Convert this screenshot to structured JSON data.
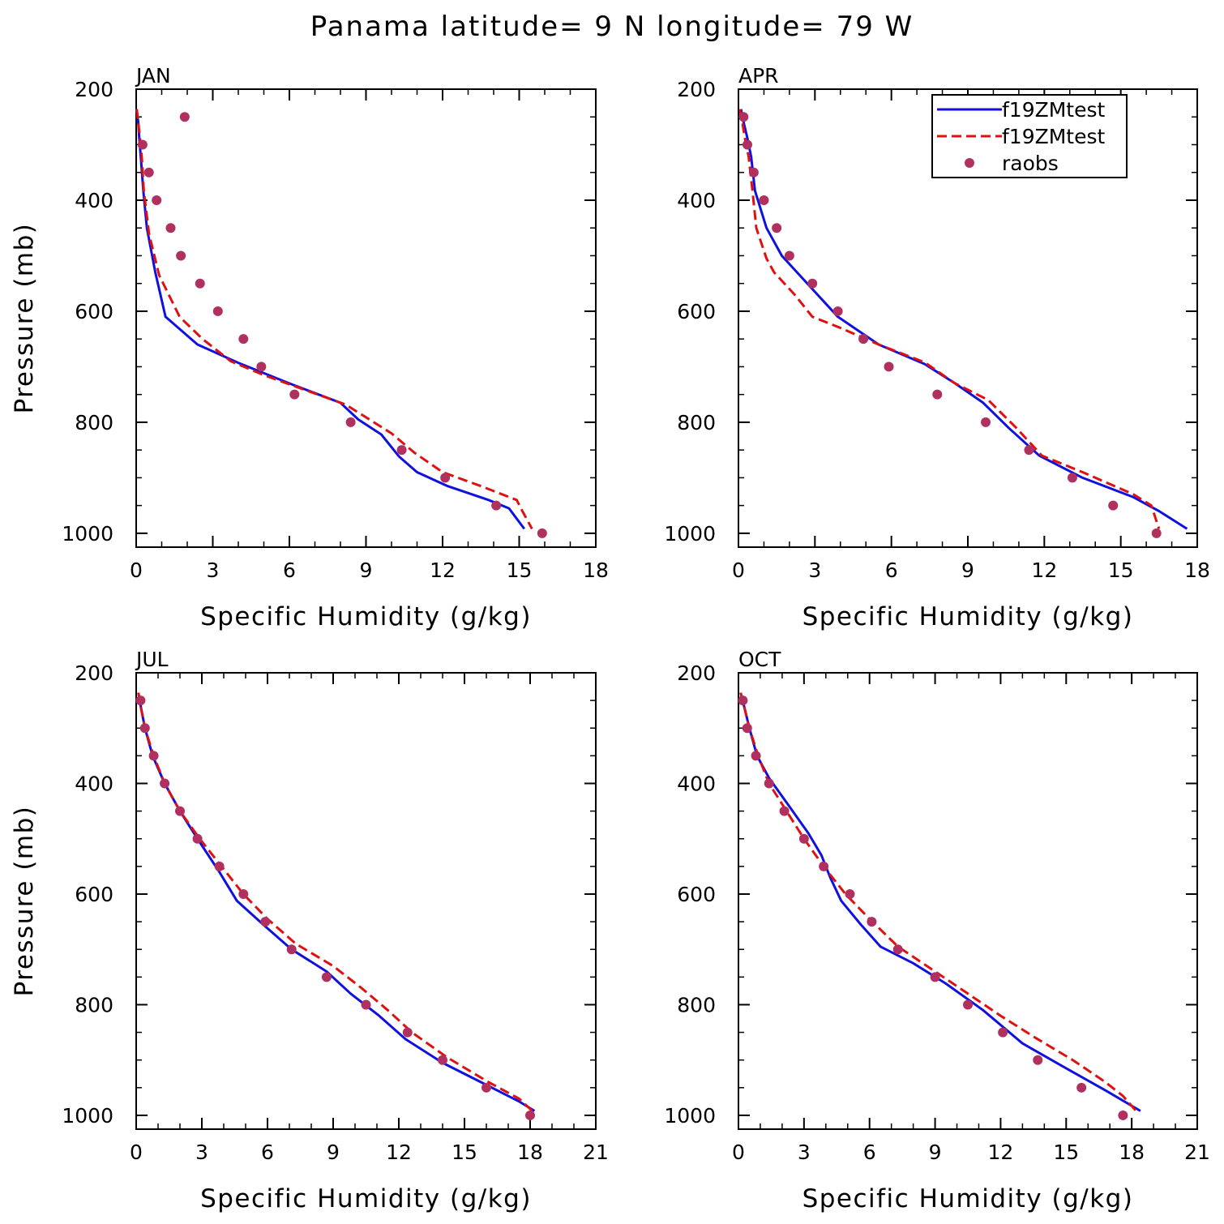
{
  "figure": {
    "title": "Panama  latitude= 9 N longitude= 79 W"
  },
  "legend": {
    "entries": [
      {
        "label": "f19ZMtest",
        "style": "solid",
        "color": "#1010e0"
      },
      {
        "label": "f19ZMtest",
        "style": "dashed",
        "color": "#e01010"
      },
      {
        "label": "raobs",
        "style": "marker",
        "color": "#b03060"
      }
    ],
    "placement": "top-right of APR panel"
  },
  "chart_data": [
    {
      "type": "line",
      "panel": "JAN",
      "xlabel": "Specific Humidity (g/kg)",
      "ylabel": "Pressure (mb)",
      "xlim": [
        0,
        18
      ],
      "xticks": [
        "0",
        "3",
        "6",
        "9",
        "12",
        "15",
        "18"
      ],
      "ylim": [
        1025,
        200
      ],
      "yticks": [
        "200",
        "400",
        "600",
        "800",
        "1000"
      ],
      "grid": false,
      "series": [
        {
          "name": "f19ZMtest",
          "style": "solid",
          "color": "#1010e0",
          "x": [
            0.02,
            0.08,
            0.12,
            0.18,
            0.28,
            0.42,
            0.75,
            1.15,
            2.4,
            4.0,
            6.0,
            8.0,
            8.7,
            9.6,
            10.3,
            11.0,
            12.2,
            13.8,
            14.6,
            15.2
          ],
          "y": [
            236,
            259,
            288,
            322,
            383,
            450,
            530,
            610,
            660,
            693,
            730,
            765,
            795,
            822,
            862,
            890,
            915,
            940,
            955,
            992
          ]
        },
        {
          "name": "f19ZMtest",
          "style": "dashed",
          "color": "#e01010",
          "x": [
            0.02,
            0.08,
            0.15,
            0.22,
            0.3,
            0.5,
            0.9,
            1.7,
            2.6,
            3.7,
            5.0,
            6.5,
            8.2,
            10.0,
            10.9,
            12.0,
            13.5,
            14.9,
            15.1,
            15.5
          ],
          "y": [
            236,
            259,
            288,
            322,
            383,
            460,
            535,
            610,
            650,
            690,
            715,
            740,
            768,
            820,
            855,
            890,
            915,
            940,
            958,
            992
          ]
        },
        {
          "name": "raobs",
          "style": "marker",
          "color": "#b03060",
          "x": [
            1.9,
            0.25,
            0.5,
            0.8,
            1.35,
            1.75,
            2.5,
            3.2,
            4.2,
            4.9,
            6.2,
            8.4,
            10.4,
            12.1,
            14.1,
            15.9
          ],
          "y": [
            250,
            300,
            350,
            400,
            450,
            500,
            550,
            600,
            650,
            700,
            750,
            800,
            850,
            900,
            950,
            1000
          ]
        }
      ]
    },
    {
      "type": "line",
      "panel": "APR",
      "xlabel": "Specific Humidity (g/kg)",
      "ylabel": "",
      "xlim": [
        0,
        18
      ],
      "xticks": [
        "0",
        "3",
        "6",
        "9",
        "12",
        "15",
        "18"
      ],
      "ylim": [
        1025,
        200
      ],
      "yticks": [
        "200",
        "400",
        "600",
        "800",
        "1000"
      ],
      "grid": false,
      "series": [
        {
          "name": "f19ZMtest",
          "style": "solid",
          "color": "#1010e0",
          "x": [
            0.1,
            0.2,
            0.35,
            0.5,
            0.65,
            1.1,
            1.7,
            2.3,
            3.0,
            3.9,
            5.5,
            7.3,
            8.5,
            9.6,
            10.6,
            11.8,
            13.5,
            15.5,
            16.5,
            17.6
          ],
          "y": [
            236,
            259,
            288,
            322,
            383,
            450,
            500,
            530,
            565,
            610,
            660,
            695,
            730,
            765,
            810,
            860,
            900,
            935,
            960,
            992
          ]
        },
        {
          "name": "f19ZMtest",
          "style": "dashed",
          "color": "#e01010",
          "x": [
            0.05,
            0.15,
            0.25,
            0.4,
            0.55,
            0.7,
            1.1,
            1.4,
            2.2,
            2.9,
            4.0,
            5.5,
            7.3,
            8.5,
            9.8,
            10.9,
            11.9,
            13.5,
            15.5,
            16.2,
            16.5
          ],
          "y": [
            236,
            259,
            288,
            322,
            383,
            450,
            505,
            530,
            570,
            610,
            630,
            660,
            692,
            730,
            760,
            810,
            860,
            890,
            930,
            950,
            992
          ]
        },
        {
          "name": "raobs",
          "style": "marker",
          "color": "#b03060",
          "x": [
            0.2,
            0.35,
            0.6,
            1.0,
            1.5,
            2.0,
            2.9,
            3.9,
            4.9,
            5.9,
            7.8,
            9.7,
            11.4,
            13.1,
            14.7,
            16.4
          ],
          "y": [
            250,
            300,
            350,
            400,
            450,
            500,
            550,
            600,
            650,
            700,
            750,
            800,
            850,
            900,
            950,
            1000
          ]
        }
      ]
    },
    {
      "type": "line",
      "panel": "JUL",
      "xlabel": "Specific Humidity (g/kg)",
      "ylabel": "Pressure (mb)",
      "xlim": [
        0,
        21
      ],
      "xticks": [
        "0",
        "3",
        "6",
        "9",
        "12",
        "15",
        "18",
        "21"
      ],
      "ylim": [
        1025,
        200
      ],
      "yticks": [
        "200",
        "400",
        "600",
        "800",
        "1000"
      ],
      "grid": false,
      "series": [
        {
          "name": "f19ZMtest",
          "style": "solid",
          "color": "#1010e0",
          "x": [
            0.1,
            0.2,
            0.4,
            0.75,
            1.3,
            2.0,
            2.8,
            3.8,
            4.6,
            5.8,
            7.1,
            8.7,
            9.8,
            11.1,
            12.3,
            14.0,
            16.0,
            17.5,
            18.2
          ],
          "y": [
            236,
            259,
            300,
            350,
            400,
            450,
            500,
            560,
            612,
            655,
            700,
            740,
            780,
            820,
            862,
            905,
            945,
            975,
            992
          ]
        },
        {
          "name": "f19ZMtest",
          "style": "dashed",
          "color": "#e01010",
          "x": [
            0.1,
            0.2,
            0.4,
            0.8,
            1.3,
            2.0,
            2.9,
            3.9,
            4.9,
            6.0,
            7.3,
            9.0,
            10.3,
            11.5,
            12.6,
            14.2,
            16.1,
            17.5,
            18.1
          ],
          "y": [
            236,
            259,
            300,
            350,
            400,
            450,
            500,
            550,
            600,
            645,
            690,
            730,
            770,
            810,
            850,
            895,
            940,
            970,
            992
          ]
        },
        {
          "name": "raobs",
          "style": "marker",
          "color": "#b03060",
          "x": [
            0.2,
            0.4,
            0.8,
            1.3,
            2.0,
            2.8,
            3.8,
            4.9,
            5.9,
            7.1,
            8.7,
            10.5,
            12.4,
            14.0,
            16.0,
            18.0
          ],
          "y": [
            250,
            300,
            350,
            400,
            450,
            500,
            550,
            600,
            650,
            700,
            750,
            800,
            850,
            900,
            950,
            1000
          ]
        }
      ]
    },
    {
      "type": "line",
      "panel": "OCT",
      "xlabel": "Specific Humidity (g/kg)",
      "ylabel": "",
      "xlim": [
        0,
        21
      ],
      "xticks": [
        "0",
        "3",
        "6",
        "9",
        "12",
        "15",
        "18",
        "21"
      ],
      "ylim": [
        1025,
        200
      ],
      "yticks": [
        "200",
        "400",
        "600",
        "800",
        "1000"
      ],
      "grid": false,
      "series": [
        {
          "name": "f19ZMtest",
          "style": "solid",
          "color": "#1010e0",
          "x": [
            0.1,
            0.25,
            0.5,
            0.85,
            1.4,
            2.3,
            3.2,
            3.8,
            4.2,
            4.7,
            5.6,
            6.5,
            8.0,
            9.5,
            11.2,
            13.0,
            15.0,
            16.8,
            18.4
          ],
          "y": [
            236,
            259,
            300,
            350,
            390,
            440,
            490,
            530,
            570,
            612,
            655,
            695,
            725,
            762,
            810,
            870,
            915,
            955,
            992
          ]
        },
        {
          "name": "f19ZMtest",
          "style": "dashed",
          "color": "#e01010",
          "x": [
            0.1,
            0.25,
            0.5,
            0.9,
            1.4,
            2.2,
            3.0,
            3.9,
            4.9,
            6.0,
            7.3,
            9.0,
            10.5,
            12.0,
            13.6,
            15.3,
            16.8,
            17.6,
            18.2
          ],
          "y": [
            236,
            259,
            300,
            350,
            400,
            450,
            500,
            550,
            600,
            645,
            695,
            740,
            780,
            820,
            860,
            900,
            940,
            965,
            992
          ]
        },
        {
          "name": "raobs",
          "style": "marker",
          "color": "#b03060",
          "x": [
            0.2,
            0.4,
            0.8,
            1.4,
            2.1,
            3.0,
            3.9,
            5.1,
            6.1,
            7.3,
            9.0,
            10.5,
            12.1,
            13.7,
            15.7,
            17.6
          ],
          "y": [
            250,
            300,
            350,
            400,
            450,
            500,
            550,
            600,
            650,
            700,
            750,
            800,
            850,
            900,
            950,
            1000
          ]
        }
      ]
    }
  ]
}
